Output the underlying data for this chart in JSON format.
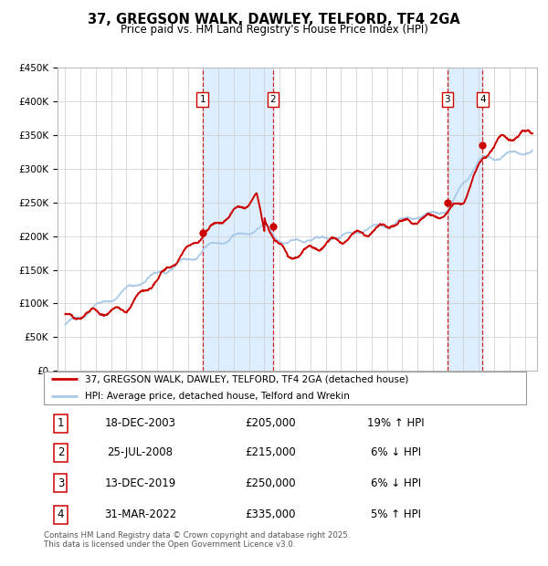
{
  "title": "37, GREGSON WALK, DAWLEY, TELFORD, TF4 2GA",
  "subtitle": "Price paid vs. HM Land Registry's House Price Index (HPI)",
  "legend_line1": "37, GREGSON WALK, DAWLEY, TELFORD, TF4 2GA (detached house)",
  "legend_line2": "HPI: Average price, detached house, Telford and Wrekin",
  "footer": "Contains HM Land Registry data © Crown copyright and database right 2025.\nThis data is licensed under the Open Government Licence v3.0.",
  "hpi_color": "#a8c8e8",
  "price_color": "#cc0000",
  "marker_color": "#cc0000",
  "vline_color": "#cc0000",
  "shade_color": "#ddeeff",
  "bg_color": "#ffffff",
  "ylim": [
    0,
    450000
  ],
  "xlim_start": 1994.5,
  "xlim_end": 2025.8,
  "sale_points": [
    {
      "num": 1,
      "year": 2003.96,
      "price": 205000,
      "date": "18-DEC-2003",
      "pct": "19%",
      "dir": "↑"
    },
    {
      "num": 2,
      "year": 2008.56,
      "price": 215000,
      "date": "25-JUL-2008",
      "pct": "6%",
      "dir": "↓"
    },
    {
      "num": 3,
      "year": 2019.95,
      "price": 250000,
      "date": "13-DEC-2019",
      "pct": "6%",
      "dir": "↓"
    },
    {
      "num": 4,
      "year": 2022.25,
      "price": 335000,
      "date": "31-MAR-2022",
      "pct": "5%",
      "dir": "↑"
    }
  ],
  "vline_pairs": [
    [
      2003.96,
      2008.56
    ],
    [
      2019.95,
      2022.25
    ]
  ]
}
